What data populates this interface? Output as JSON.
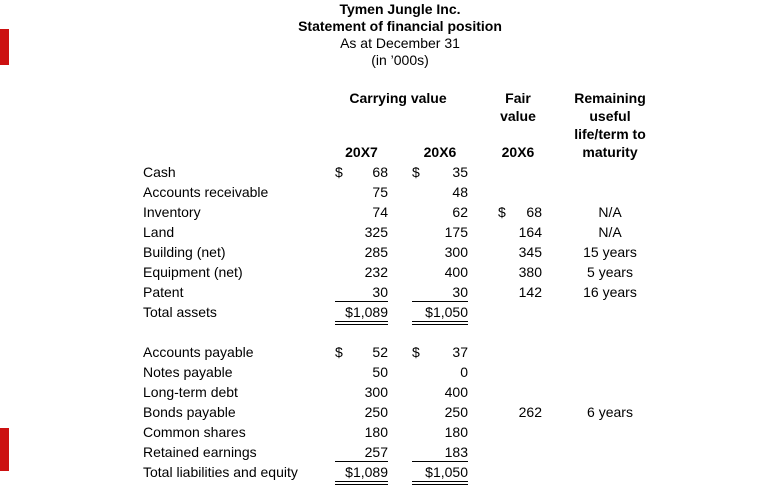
{
  "title": {
    "company": "Tymen Jungle Inc.",
    "statement": "Statement of financial position",
    "date_line": "As at December 31",
    "units_line": "(in ’000s)"
  },
  "columns": {
    "carrying_value": "Carrying value",
    "fair_line1": "Fair",
    "fair_line2": "value",
    "remaining_line1": "Remaining",
    "remaining_line2": "useful",
    "remaining_line3": "life/term to",
    "remaining_line4": "maturity",
    "year_20x7": "20X7",
    "year_20x6": "20X6",
    "fair_year": "20X6"
  },
  "assets": {
    "rows": [
      {
        "label": "Cash",
        "cur1": "$",
        "v1": "68",
        "cur2": "$",
        "v2": "35",
        "fcur": "",
        "fair": "",
        "term": "",
        "rule": ""
      },
      {
        "label": "Accounts receivable",
        "cur1": "",
        "v1": "75",
        "cur2": "",
        "v2": "48",
        "fcur": "",
        "fair": "",
        "term": "",
        "rule": ""
      },
      {
        "label": "Inventory",
        "cur1": "",
        "v1": "74",
        "cur2": "",
        "v2": "62",
        "fcur": "$",
        "fair": "68",
        "term": "N/A",
        "rule": ""
      },
      {
        "label": "Land",
        "cur1": "",
        "v1": "325",
        "cur2": "",
        "v2": "175",
        "fcur": "",
        "fair": "164",
        "term": "N/A",
        "rule": ""
      },
      {
        "label": "Building (net)",
        "cur1": "",
        "v1": "285",
        "cur2": "",
        "v2": "300",
        "fcur": "",
        "fair": "345",
        "term": "15 years",
        "rule": ""
      },
      {
        "label": "Equipment (net)",
        "cur1": "",
        "v1": "232",
        "cur2": "",
        "v2": "400",
        "fcur": "",
        "fair": "380",
        "term": "5 years",
        "rule": ""
      },
      {
        "label": "Patent",
        "cur1": "",
        "v1": "30",
        "cur2": "",
        "v2": "30",
        "fcur": "",
        "fair": "142",
        "term": "16 years",
        "rule": "single"
      },
      {
        "label": "Total assets",
        "cur1": "",
        "v1": "$1,089",
        "cur2": "",
        "v2": "$1,050",
        "fcur": "",
        "fair": "",
        "term": "",
        "rule": "double"
      }
    ]
  },
  "liabilities": {
    "rows": [
      {
        "label": "Accounts payable",
        "cur1": "$",
        "v1": "52",
        "cur2": "$",
        "v2": "37",
        "fcur": "",
        "fair": "",
        "term": "",
        "rule": ""
      },
      {
        "label": "Notes payable",
        "cur1": "",
        "v1": "50",
        "cur2": "",
        "v2": "0",
        "fcur": "",
        "fair": "",
        "term": "",
        "rule": ""
      },
      {
        "label": "Long-term debt",
        "cur1": "",
        "v1": "300",
        "cur2": "",
        "v2": "400",
        "fcur": "",
        "fair": "",
        "term": "",
        "rule": ""
      },
      {
        "label": "Bonds payable",
        "cur1": "",
        "v1": "250",
        "cur2": "",
        "v2": "250",
        "fcur": "",
        "fair": "262",
        "term": "6 years",
        "rule": ""
      },
      {
        "label": "Common shares",
        "cur1": "",
        "v1": "180",
        "cur2": "",
        "v2": "180",
        "fcur": "",
        "fair": "",
        "term": "",
        "rule": ""
      },
      {
        "label": "Retained earnings",
        "cur1": "",
        "v1": "257",
        "cur2": "",
        "v2": "183",
        "fcur": "",
        "fair": "",
        "term": "",
        "rule": "single"
      },
      {
        "label": "Total liabilities and equity",
        "cur1": "",
        "v1": "$1,089",
        "cur2": "",
        "v2": "$1,050",
        "fcur": "",
        "fair": "",
        "term": "",
        "rule": "double"
      }
    ]
  },
  "colors": {
    "text": "#000000",
    "background": "#ffffff",
    "margin_mark": "#cc1111"
  }
}
